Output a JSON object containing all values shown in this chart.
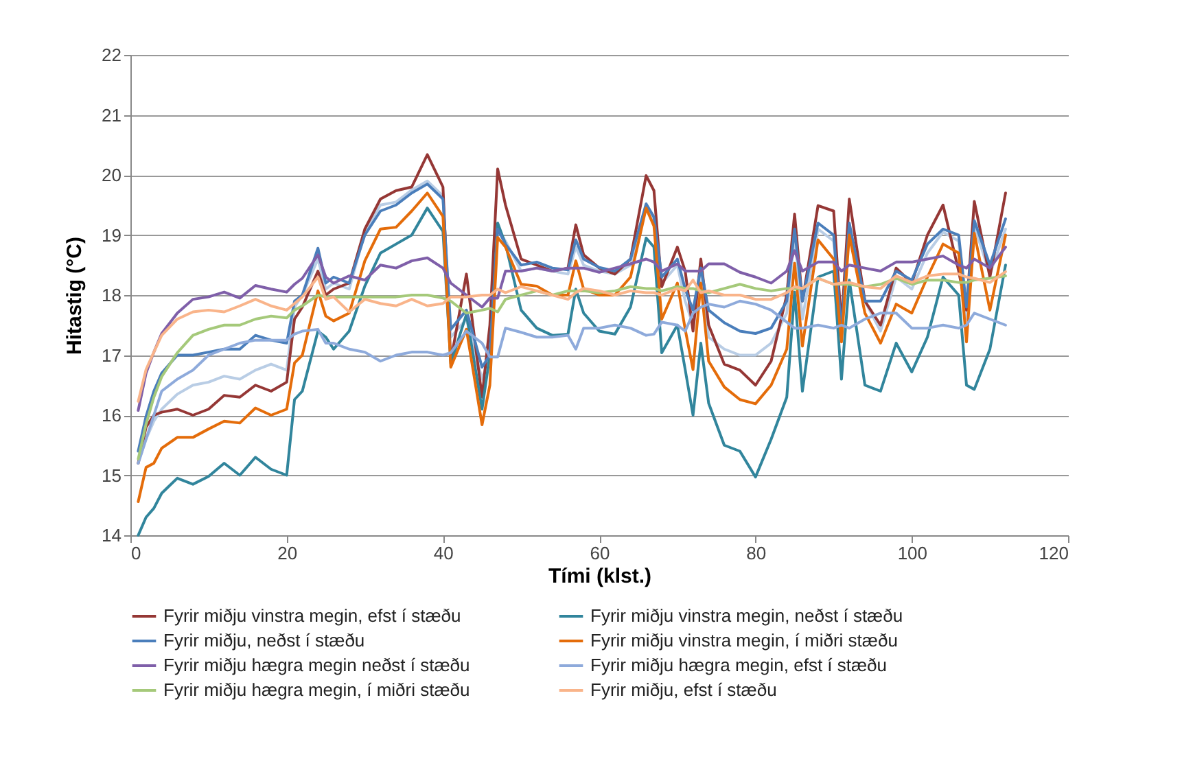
{
  "chart_data": {
    "type": "line",
    "xlabel": "Tími (klst.)",
    "ylabel": "Hitastig (°C)",
    "xlim": [
      0,
      120
    ],
    "xticks": [
      0,
      20,
      40,
      60,
      80,
      100,
      120
    ],
    "ylim": [
      14,
      22
    ],
    "yticks": [
      14,
      15,
      16,
      17,
      18,
      19,
      20,
      21,
      22
    ],
    "grid": "y",
    "legend": "bottom",
    "x": [
      1,
      2,
      3,
      4,
      6,
      8,
      10,
      12,
      14,
      16,
      18,
      20,
      21,
      22,
      24,
      25,
      26,
      28,
      30,
      32,
      34,
      36,
      38,
      40,
      41,
      43,
      45,
      46,
      47,
      48,
      50,
      52,
      54,
      56,
      57,
      58,
      60,
      62,
      64,
      66,
      67,
      68,
      70,
      71,
      72,
      73,
      74,
      76,
      78,
      80,
      82,
      84,
      85,
      86,
      88,
      90,
      91,
      92,
      94,
      96,
      98,
      100,
      102,
      104,
      106,
      107,
      108,
      110,
      112
    ],
    "series": [
      {
        "name": "Fyrir miðju vinstra megin, efst í stæðu",
        "color": "#953735",
        "values": [
          15.2,
          15.8,
          16.0,
          16.05,
          16.1,
          16.0,
          16.1,
          16.33,
          16.3,
          16.5,
          16.4,
          16.55,
          17.6,
          17.8,
          18.4,
          18.0,
          18.1,
          18.2,
          19.1,
          19.6,
          19.74,
          19.8,
          20.34,
          19.8,
          16.9,
          18.35,
          16.3,
          17.5,
          20.1,
          19.5,
          18.6,
          18.5,
          18.4,
          18.45,
          19.17,
          18.67,
          18.45,
          18.35,
          18.6,
          19.99,
          19.74,
          18.14,
          18.8,
          18.4,
          17.4,
          18.6,
          17.5,
          16.85,
          16.75,
          16.5,
          16.9,
          18.0,
          19.35,
          17.9,
          19.49,
          19.4,
          17.5,
          19.6,
          17.9,
          17.5,
          18.45,
          18.2,
          19.0,
          19.5,
          18.4,
          17.75,
          19.56,
          18.3,
          19.7
        ]
      },
      {
        "name": "Fyrir miðju vinstra megin, neðst í stæðu",
        "color": "#31859c",
        "values": [
          14.0,
          14.3,
          14.45,
          14.7,
          14.95,
          14.85,
          14.98,
          15.2,
          15.0,
          15.3,
          15.1,
          15.0,
          16.26,
          16.4,
          17.4,
          17.3,
          17.1,
          17.4,
          18.15,
          18.7,
          18.85,
          19.0,
          19.45,
          19.06,
          16.86,
          17.68,
          16.1,
          17.0,
          19.2,
          18.85,
          17.75,
          17.45,
          17.33,
          17.35,
          18.1,
          17.7,
          17.4,
          17.35,
          17.8,
          18.95,
          18.8,
          17.04,
          17.5,
          16.76,
          16.0,
          17.2,
          16.2,
          15.5,
          15.4,
          14.97,
          15.6,
          16.3,
          18.05,
          16.4,
          18.3,
          18.4,
          16.6,
          18.25,
          16.5,
          16.4,
          17.2,
          16.72,
          17.3,
          18.3,
          18.0,
          16.5,
          16.43,
          17.1,
          18.5
        ]
      },
      {
        "name": "Fyrir miðju, neðst í stæðu",
        "color": "#4a7ebb",
        "values": [
          15.4,
          15.98,
          16.4,
          16.7,
          17.0,
          17.0,
          17.05,
          17.1,
          17.1,
          17.33,
          17.25,
          17.2,
          17.9,
          18.0,
          18.78,
          18.2,
          18.3,
          18.2,
          19.0,
          19.4,
          19.5,
          19.7,
          19.85,
          19.6,
          17.43,
          17.75,
          16.8,
          17.0,
          19.1,
          18.85,
          18.5,
          18.55,
          18.45,
          18.42,
          18.92,
          18.6,
          18.46,
          18.4,
          18.6,
          19.52,
          19.3,
          18.3,
          18.6,
          18.1,
          17.75,
          18.45,
          17.75,
          17.54,
          17.4,
          17.36,
          17.45,
          17.9,
          19.1,
          17.9,
          19.2,
          19.0,
          17.4,
          19.2,
          17.9,
          17.9,
          18.4,
          18.25,
          18.85,
          19.1,
          19.0,
          17.8,
          19.24,
          18.5,
          19.27
        ]
      },
      {
        "name": "Fyrir miðju vinstra megin, í miðri stæðu",
        "color": "#e46c0a",
        "values": [
          14.56,
          15.13,
          15.2,
          15.45,
          15.63,
          15.63,
          15.77,
          15.9,
          15.87,
          16.12,
          16.0,
          16.1,
          16.87,
          17.0,
          18.07,
          17.65,
          17.57,
          17.7,
          18.57,
          19.1,
          19.13,
          19.4,
          19.7,
          19.31,
          16.8,
          17.43,
          15.84,
          16.5,
          18.96,
          18.8,
          18.18,
          18.15,
          18.0,
          18.0,
          18.57,
          18.1,
          18.0,
          18.0,
          18.3,
          19.45,
          19.15,
          17.6,
          18.2,
          17.43,
          16.76,
          18.2,
          16.9,
          16.47,
          16.26,
          16.19,
          16.5,
          17.1,
          18.53,
          17.15,
          18.92,
          18.6,
          17.22,
          19.0,
          17.7,
          17.2,
          17.85,
          17.7,
          18.3,
          18.85,
          18.7,
          17.22,
          19.03,
          17.75,
          19.0
        ]
      },
      {
        "name": "Fyrir miðju hægra megin neðst í stæðu",
        "color": "#7f5fa9",
        "values": [
          16.08,
          16.7,
          17.05,
          17.36,
          17.7,
          17.93,
          17.97,
          18.05,
          17.95,
          18.16,
          18.1,
          18.05,
          18.18,
          18.28,
          18.67,
          18.3,
          18.2,
          18.32,
          18.25,
          18.5,
          18.45,
          18.57,
          18.62,
          18.45,
          18.2,
          18.0,
          17.8,
          17.95,
          17.95,
          18.4,
          18.4,
          18.45,
          18.4,
          18.45,
          18.45,
          18.45,
          18.38,
          18.45,
          18.52,
          18.6,
          18.55,
          18.4,
          18.52,
          18.4,
          18.4,
          18.4,
          18.52,
          18.52,
          18.38,
          18.3,
          18.2,
          18.4,
          18.74,
          18.4,
          18.55,
          18.55,
          18.4,
          18.5,
          18.45,
          18.4,
          18.55,
          18.55,
          18.6,
          18.65,
          18.5,
          18.45,
          18.6,
          18.45,
          18.8
        ]
      },
      {
        "name": "Fyrir miðju hægra megin, efst í stæðu",
        "color": "#8eaadb",
        "values": [
          15.2,
          15.6,
          16.0,
          16.4,
          16.6,
          16.75,
          17.0,
          17.1,
          17.2,
          17.25,
          17.25,
          17.25,
          17.35,
          17.4,
          17.43,
          17.2,
          17.2,
          17.1,
          17.05,
          16.9,
          17.0,
          17.05,
          17.05,
          17.0,
          17.04,
          17.4,
          17.2,
          16.97,
          16.97,
          17.45,
          17.38,
          17.3,
          17.3,
          17.33,
          17.1,
          17.45,
          17.45,
          17.5,
          17.45,
          17.33,
          17.35,
          17.55,
          17.5,
          17.4,
          17.7,
          17.8,
          17.85,
          17.8,
          17.9,
          17.85,
          17.75,
          17.55,
          17.45,
          17.45,
          17.5,
          17.45,
          17.5,
          17.45,
          17.6,
          17.7,
          17.7,
          17.45,
          17.45,
          17.5,
          17.45,
          17.5,
          17.7,
          17.6,
          17.5
        ]
      },
      {
        "name": "Fyrir miðju hægra megin, í miðri stæðu",
        "color": "#a5c97a",
        "values": [
          15.27,
          15.85,
          16.3,
          16.64,
          17.04,
          17.33,
          17.43,
          17.5,
          17.5,
          17.6,
          17.65,
          17.62,
          17.75,
          17.82,
          18.0,
          17.97,
          17.97,
          17.97,
          17.97,
          17.97,
          17.97,
          18.0,
          18.0,
          17.95,
          17.9,
          17.7,
          17.75,
          17.78,
          17.72,
          17.93,
          18.0,
          18.07,
          18.0,
          18.07,
          18.07,
          18.07,
          18.04,
          18.07,
          18.14,
          18.11,
          18.11,
          18.07,
          18.14,
          18.11,
          18.11,
          18.07,
          18.04,
          18.11,
          18.18,
          18.11,
          18.07,
          18.11,
          18.11,
          18.11,
          18.28,
          18.18,
          18.18,
          18.18,
          18.14,
          18.18,
          18.28,
          18.18,
          18.25,
          18.25,
          18.21,
          18.21,
          18.25,
          18.28,
          18.32
        ]
      },
      {
        "name": "Fyrir miðju, efst í stæðu",
        "color": "#f9b48a",
        "values": [
          16.23,
          16.76,
          17.05,
          17.33,
          17.6,
          17.72,
          17.75,
          17.72,
          17.82,
          17.93,
          17.82,
          17.75,
          17.86,
          17.97,
          18.3,
          17.93,
          17.97,
          17.72,
          17.93,
          17.86,
          17.82,
          17.93,
          17.82,
          17.86,
          17.97,
          17.97,
          18.0,
          18.0,
          18.1,
          18.04,
          18.14,
          18.07,
          18.0,
          17.93,
          18.04,
          18.11,
          18.07,
          18.0,
          18.07,
          18.04,
          18.04,
          18.0,
          18.11,
          18.07,
          18.25,
          18.04,
          18.07,
          18.0,
          18.0,
          17.93,
          17.93,
          18.04,
          18.14,
          18.11,
          18.28,
          18.18,
          18.2,
          18.21,
          18.14,
          18.11,
          18.32,
          18.21,
          18.32,
          18.35,
          18.35,
          18.3,
          18.28,
          18.21,
          18.39
        ]
      },
      {
        "color": "#b9cde5",
        "values": [
          15.2,
          15.6,
          15.9,
          16.1,
          16.35,
          16.5,
          16.55,
          16.65,
          16.6,
          16.75,
          16.85,
          16.75,
          17.8,
          18.0,
          18.6,
          18.1,
          18.2,
          18.1,
          19.05,
          19.5,
          19.55,
          19.75,
          19.9,
          19.65,
          17.3,
          17.6,
          16.6,
          17.0,
          19.1,
          18.9,
          18.4,
          18.45,
          18.4,
          18.35,
          18.8,
          18.5,
          18.4,
          18.35,
          18.5,
          19.45,
          19.25,
          18.2,
          18.5,
          17.9,
          17.5,
          18.4,
          17.3,
          17.1,
          17.0,
          17.0,
          17.2,
          17.7,
          19.0,
          17.6,
          19.1,
          18.9,
          17.5,
          19.1,
          17.9,
          17.4,
          18.3,
          18.1,
          18.7,
          19.05,
          18.9,
          17.6,
          19.15,
          18.35,
          19.1
        ]
      }
    ]
  }
}
